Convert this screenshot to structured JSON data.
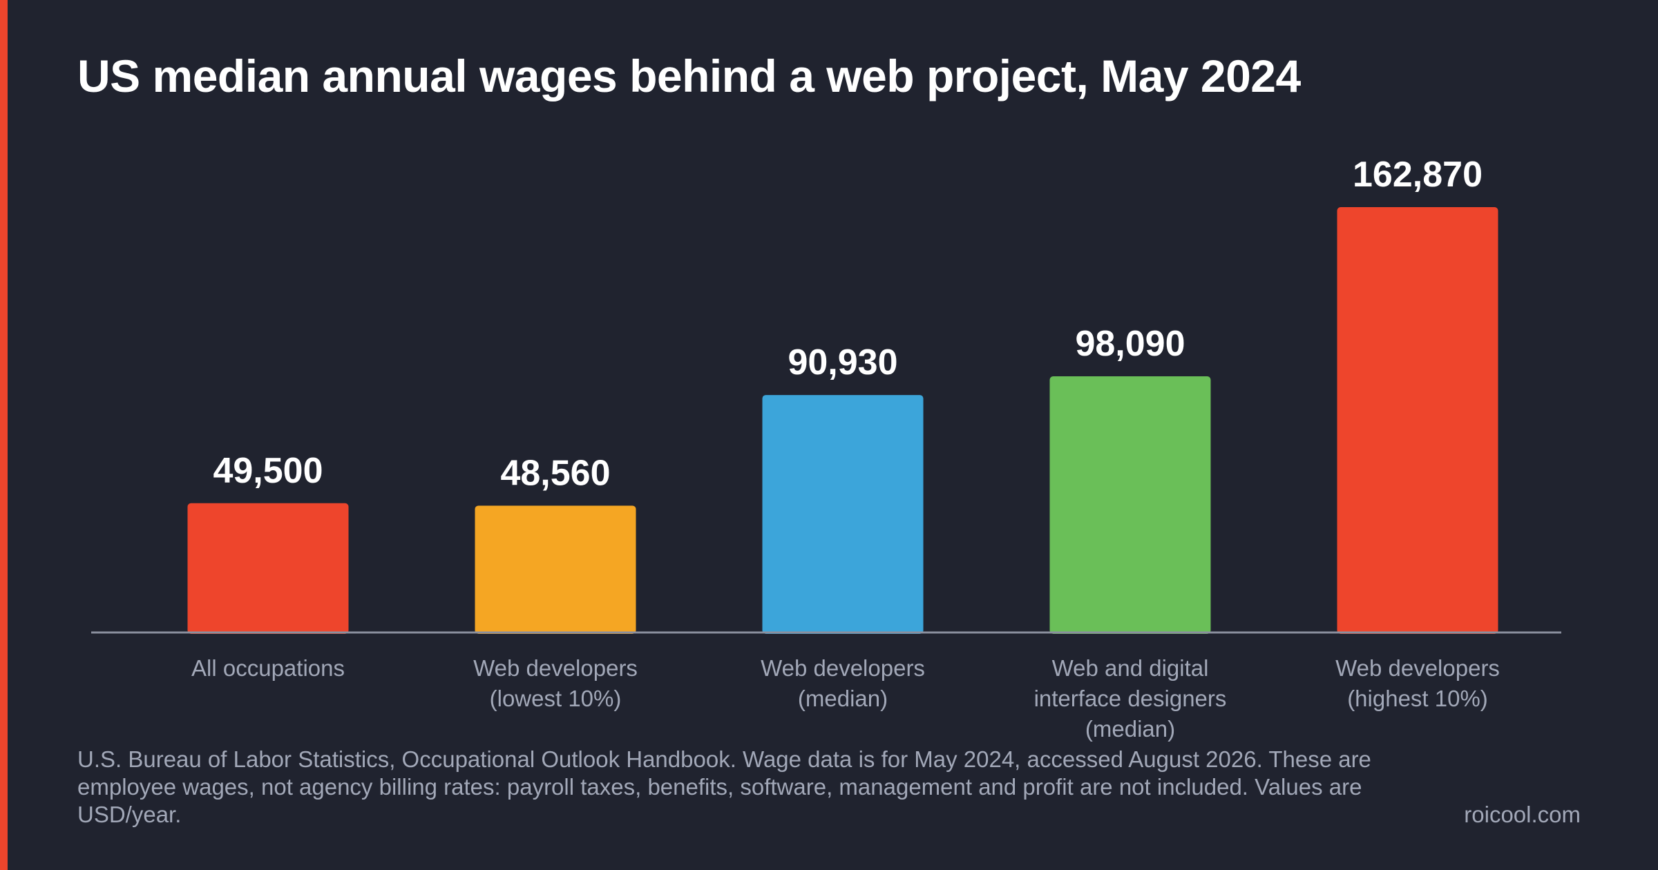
{
  "chart_data": {
    "type": "bar",
    "title": "US median annual wages behind a web project, May 2024",
    "xlabel": "",
    "ylabel": "",
    "ylim": [
      0,
      162870
    ],
    "grid": false,
    "legend": "none",
    "categories": [
      [
        "All occupations"
      ],
      [
        "Web developers",
        "(lowest 10%)"
      ],
      [
        "Web developers",
        "(median)"
      ],
      [
        "Web and digital",
        "interface designers",
        "(median)"
      ],
      [
        "Web developers",
        "(highest 10%)"
      ]
    ],
    "values": [
      49500,
      48560,
      90930,
      98090,
      162870
    ],
    "value_labels": [
      "49,500",
      "48,560",
      "90,930",
      "98,090",
      "162,870"
    ],
    "colors": [
      "#ee452c",
      "#f5a623",
      "#3ca5da",
      "#6abf58",
      "#ee452c"
    ]
  },
  "footer": {
    "source": "U.S. Bureau of Labor Statistics, Occupational Outlook Handbook. Wage data is for May 2024, accessed August 2026. These are employee wages, not agency billing rates: payroll taxes, benefits, software, management and profit are not included. Values are USD/year.",
    "site": "roicool.com"
  },
  "colors": {
    "background": "#20232f",
    "accent": "#ee452c",
    "axis": "#8a8f9e",
    "muted_text": "#a2a8b8"
  }
}
